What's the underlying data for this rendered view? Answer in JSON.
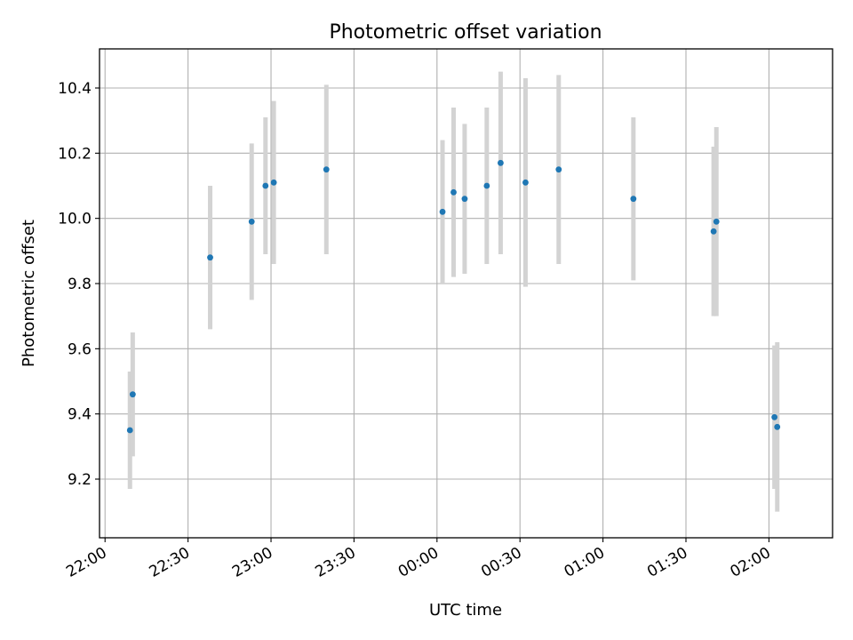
{
  "chart_data": {
    "type": "scatter",
    "title": "Photometric offset variation",
    "xlabel": "UTC time",
    "ylabel": "Photometric offset",
    "x_unit": "UTC time (22:00 → 02:00 across midnight)",
    "xlim": [
      "21:58",
      "02:23"
    ],
    "ylim": [
      9.02,
      10.52
    ],
    "xticks": [
      "22:00",
      "22:30",
      "23:00",
      "23:30",
      "00:00",
      "00:30",
      "01:00",
      "01:30",
      "02:00"
    ],
    "yticks": [
      "9.2",
      "9.4",
      "9.6",
      "9.8",
      "10.0",
      "10.2",
      "10.4"
    ],
    "grid": true,
    "series": [
      {
        "marker_color": "#1f77b4",
        "errorbar_color": "#d3d3d3",
        "points": [
          {
            "x": "22:09",
            "y": 9.35,
            "err": 0.18
          },
          {
            "x": "22:10",
            "y": 9.46,
            "err": 0.19
          },
          {
            "x": "22:38",
            "y": 9.88,
            "err": 0.22
          },
          {
            "x": "22:53",
            "y": 9.99,
            "err": 0.24
          },
          {
            "x": "22:58",
            "y": 10.1,
            "err": 0.21
          },
          {
            "x": "23:01",
            "y": 10.11,
            "err": 0.25
          },
          {
            "x": "23:20",
            "y": 10.15,
            "err": 0.26
          },
          {
            "x": "00:02",
            "y": 10.02,
            "err": 0.22
          },
          {
            "x": "00:06",
            "y": 10.08,
            "err": 0.26
          },
          {
            "x": "00:10",
            "y": 10.06,
            "err": 0.23
          },
          {
            "x": "00:18",
            "y": 10.1,
            "err": 0.24
          },
          {
            "x": "00:23",
            "y": 10.17,
            "err": 0.28
          },
          {
            "x": "00:32",
            "y": 10.11,
            "err": 0.32
          },
          {
            "x": "00:44",
            "y": 10.15,
            "err": 0.29
          },
          {
            "x": "01:11",
            "y": 10.06,
            "err": 0.25
          },
          {
            "x": "01:40",
            "y": 9.96,
            "err": 0.26
          },
          {
            "x": "01:41",
            "y": 9.99,
            "err": 0.29
          },
          {
            "x": "02:02",
            "y": 9.39,
            "err": 0.22
          },
          {
            "x": "02:03",
            "y": 9.36,
            "err": 0.26
          }
        ]
      }
    ]
  }
}
